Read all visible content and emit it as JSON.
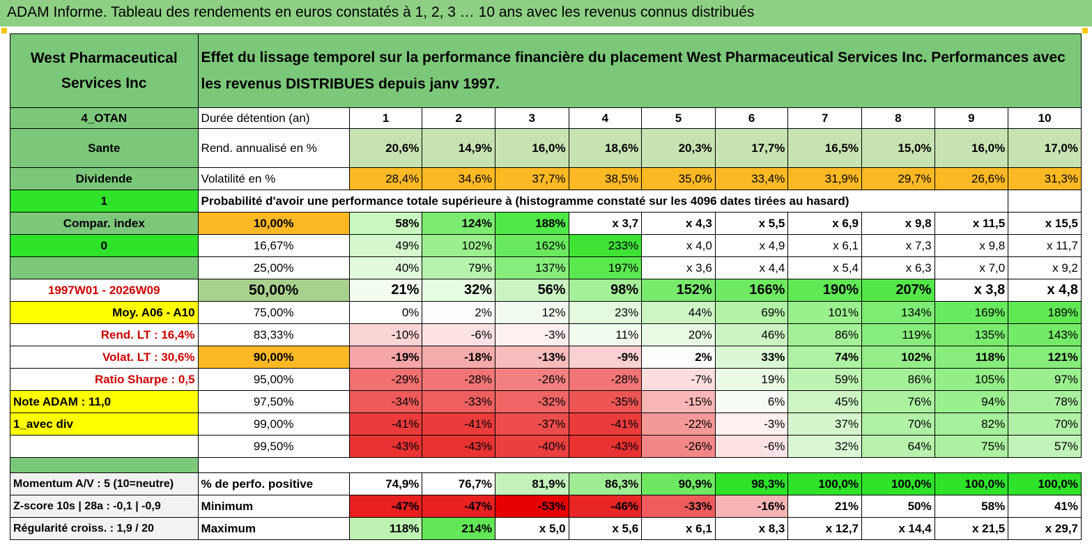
{
  "title": "ADAM Informe. Tableau des rendements en euros constatés à 1, 2, 3 … 10 ans avec les revenus connus distribués",
  "company": "West Pharmaceutical Services Inc",
  "description": "Effet du lissage temporel sur la performance financière du placement West Pharmaceutical Services Inc. Performances avec les revenus DISTRIBUES depuis janv 1997.",
  "histogram_caption": "Probabilité d'avoir une performance totale supérieure à (histogramme constaté sur les 4096 dates tirées au hasard)",
  "rows": [
    {
      "side": "4_OTAN",
      "label": "Durée détention (an)",
      "values": [
        "1",
        "2",
        "3",
        "4",
        "5",
        "6",
        "7",
        "8",
        "9",
        "10"
      ],
      "bold": true,
      "h": 30,
      "colors": [
        "#ffffff",
        "#ffffff",
        "#ffffff",
        "#ffffff",
        "#ffffff",
        "#ffffff",
        "#ffffff",
        "#ffffff",
        "#ffffff",
        "#ffffff"
      ],
      "align": "center"
    },
    {
      "side": "Sante",
      "label": "Rend. annualisé en %",
      "values": [
        "20,6%",
        "14,9%",
        "16,0%",
        "18,6%",
        "20,3%",
        "17,7%",
        "16,5%",
        "15,0%",
        "16,0%",
        "17,0%"
      ],
      "bold": true,
      "h": 56,
      "colors": [
        "#c7e3b2",
        "#c7e3b2",
        "#c7e3b2",
        "#c7e3b2",
        "#c7e3b2",
        "#c7e3b2",
        "#c7e3b2",
        "#c7e3b2",
        "#c7e3b2",
        "#c7e3b2"
      ]
    },
    {
      "side": "Dividende",
      "label": "Volatilité en %",
      "values": [
        "28,4%",
        "34,6%",
        "37,7%",
        "38,5%",
        "35,0%",
        "33,4%",
        "31,9%",
        "29,7%",
        "26,6%",
        "31,3%"
      ],
      "bold": false,
      "h": 32,
      "colors": [
        "#fdb924",
        "#fdb924",
        "#fdb924",
        "#fdb924",
        "#fdb924",
        "#fdb924",
        "#fdb924",
        "#fdb924",
        "#fdb924",
        "#fdb924"
      ]
    },
    {
      "side": "Compar. index",
      "label": "10,00%",
      "values": [
        "58%",
        "124%",
        "188%",
        "x 3,7",
        "x 4,3",
        "x 5,5",
        "x 6,9",
        "x 9,8",
        "x 11,5",
        "x 15,5"
      ],
      "bold": true,
      "h": 32,
      "colors": [
        "#c9f7c0",
        "#7cec70",
        "#4fe848",
        "#ffffff",
        "#ffffff",
        "#ffffff",
        "#ffffff",
        "#ffffff",
        "#ffffff",
        "#ffffff"
      ]
    },
    {
      "side": "0",
      "label": "16,67%",
      "values": [
        "49%",
        "102%",
        "162%",
        "233%",
        "x 4,0",
        "x 4,9",
        "x 6,1",
        "x 7,3",
        "x 9,8",
        "x 11,7"
      ],
      "bold": false,
      "h": 32,
      "colors": [
        "#d6f8cf",
        "#9bef8f",
        "#6ae95e",
        "#3ee336",
        "#ffffff",
        "#ffffff",
        "#ffffff",
        "#ffffff",
        "#ffffff",
        "#ffffff"
      ]
    },
    {
      "side": "",
      "label": "25,00%",
      "values": [
        "40%",
        "79%",
        "137%",
        "197%",
        "x 3,6",
        "x 4,4",
        "x 5,4",
        "x 6,3",
        "x 7,0",
        "x 9,2"
      ],
      "bold": false,
      "h": 32,
      "colors": [
        "#e1fadc",
        "#b7f3ad",
        "#86ec7b",
        "#5ae84f",
        "#ffffff",
        "#ffffff",
        "#ffffff",
        "#ffffff",
        "#ffffff",
        "#ffffff"
      ]
    },
    {
      "side": "1997W01 - 2026W09",
      "label": "50,00%",
      "values": [
        "21%",
        "32%",
        "56%",
        "98%",
        "152%",
        "166%",
        "190%",
        "207%",
        "x 3,8",
        "x 4,8"
      ],
      "bold": true,
      "h": 32,
      "colors": [
        "#f2fcef",
        "#e7fae2",
        "#cbf4c2",
        "#a4f098",
        "#78ea6c",
        "#6fea62",
        "#60e855",
        "#55e74a",
        "#ffffff",
        "#ffffff"
      ]
    },
    {
      "side": "Moy. A06 - A10",
      "label": "75,00%",
      "values": [
        "0%",
        "2%",
        "12%",
        "23%",
        "44%",
        "69%",
        "101%",
        "134%",
        "169%",
        "189%"
      ],
      "bold": false,
      "h": 32,
      "colors": [
        "#ffffff",
        "#fcfefb",
        "#f1fbed",
        "#e4f9de",
        "#cdf5c4",
        "#b4f2a8",
        "#9af08d",
        "#7fec73",
        "#6aea5e",
        "#60e854"
      ]
    },
    {
      "side": "Rend. LT :   16,4%",
      "label": "83,33%",
      "values": [
        "-10%",
        "-6%",
        "-3%",
        "11%",
        "20%",
        "46%",
        "86%",
        "119%",
        "135%",
        "143%"
      ],
      "bold": false,
      "h": 32,
      "colors": [
        "#fbd4d4",
        "#fce2e2",
        "#fdf0f0",
        "#f1fbee",
        "#e8fae3",
        "#ccf4c3",
        "#a4f098",
        "#86ec7b",
        "#7aeb6e",
        "#74eb68"
      ]
    },
    {
      "side": "Volat. LT :   30,6%",
      "label": "90,00%",
      "values": [
        "-19%",
        "-18%",
        "-13%",
        "-9%",
        "2%",
        "33%",
        "74%",
        "102%",
        "118%",
        "121%"
      ],
      "bold": true,
      "h": 32,
      "colors": [
        "#f6a6a6",
        "#f6abab",
        "#f8bcbc",
        "#fad0d0",
        "#fcfefb",
        "#dbf8d5",
        "#aef1a3",
        "#96ee8a",
        "#88ec7c",
        "#86ec7a"
      ]
    },
    {
      "side": "Ratio Sharpe :    0,5",
      "label": "95,00%",
      "values": [
        "-29%",
        "-28%",
        "-26%",
        "-28%",
        "-7%",
        "19%",
        "59%",
        "86%",
        "105%",
        "97%"
      ],
      "bold": false,
      "h": 32,
      "colors": [
        "#f17070",
        "#f27575",
        "#f38080",
        "#f27575",
        "#fcdede",
        "#e9fae5",
        "#bdf3b3",
        "#a4f098",
        "#93ee87",
        "#9bef8f"
      ]
    },
    {
      "side": "Note ADAM : 11,0",
      "label": "97,50%",
      "values": [
        "-34%",
        "-33%",
        "-32%",
        "-35%",
        "-15%",
        "6%",
        "45%",
        "76%",
        "94%",
        "78%"
      ],
      "bold": false,
      "h": 32,
      "colors": [
        "#ee5a5a",
        "#ee5f5f",
        "#ef6464",
        "#ed5555",
        "#f8b6b6",
        "#f7fdf5",
        "#ccf5c3",
        "#abf1a0",
        "#9aef8e",
        "#a9f09e"
      ]
    },
    {
      "side": "1_avec div",
      "label": "99,00%",
      "values": [
        "-41%",
        "-41%",
        "-37%",
        "-41%",
        "-22%",
        "-3%",
        "37%",
        "70%",
        "82%",
        "70%"
      ],
      "bold": false,
      "h": 32,
      "colors": [
        "#eb3b3b",
        "#eb3b3b",
        "#ec4c4c",
        "#eb3b3b",
        "#f49898",
        "#fdf0f0",
        "#d5f6cd",
        "#b1f1a6",
        "#a5f09a",
        "#b1f1a6"
      ]
    },
    {
      "side": "",
      "label": "99,50%",
      "values": [
        "-43%",
        "-43%",
        "-40%",
        "-43%",
        "-26%",
        "-6%",
        "32%",
        "64%",
        "75%",
        "57%"
      ],
      "bold": false,
      "h": 32,
      "colors": [
        "#ea3232",
        "#ea3232",
        "#eb3f3f",
        "#ea3232",
        "#f38787",
        "#fce2e2",
        "#dbf8d4",
        "#b8f2ad",
        "#acf0a1",
        "#c1f4b8"
      ]
    }
  ],
  "side_colors": [
    "#7cc87a",
    "#7cc87a",
    "#7cc87a",
    "#7cc87a",
    "#2ee32a",
    "#7cc87a",
    "#ffffff",
    "#ffff00",
    "#ffffff",
    "#ffffff",
    "#ffffff",
    "#ffff00",
    "#ffff00",
    "#ffffff"
  ],
  "label_colors": [
    "#ffffff",
    "#ffffff",
    "#ffffff",
    "#fdb924",
    "#ffffff",
    "#ffffff",
    "#a9d18e",
    "#ffffff",
    "#ffffff",
    "#fdb924",
    "#ffffff",
    "#ffffff",
    "#ffffff",
    "#ffffff"
  ],
  "filter_value": "1",
  "bottom": [
    {
      "side": "Momentum A/V : 5 (10=neutre)",
      "label": "% de perfo. positive",
      "values": [
        "74,9%",
        "76,7%",
        "81,9%",
        "86,3%",
        "90,9%",
        "98,3%",
        "100,0%",
        "100,0%",
        "100,0%",
        "100,0%"
      ],
      "colors": [
        "#ffffff",
        "#ffffff",
        "#c4f2ba",
        "#9fed93",
        "#6ee862",
        "#2ee32a",
        "#2ee32a",
        "#2ee32a",
        "#2ee32a",
        "#2ee32a"
      ]
    },
    {
      "side": "Z-score 10s | 28a : -0,1 | -0,9",
      "label": "Minimum",
      "values": [
        "-47%",
        "-47%",
        "-53%",
        "-46%",
        "-33%",
        "-16%",
        "21%",
        "50%",
        "58%",
        "41%"
      ],
      "colors": [
        "#e82020",
        "#e82020",
        "#e60000",
        "#e82626",
        "#f05c5c",
        "#f7b4b4",
        "#ffffff",
        "#ffffff",
        "#ffffff",
        "#ffffff"
      ]
    },
    {
      "side": "Régularité croiss. : 1,9 / 20",
      "label": "Maximum",
      "values": [
        "118%",
        "214%",
        "x 5,0",
        "x 5,6",
        "x 6,1",
        "x 8,3",
        "x 12,7",
        "x 14,4",
        "x 21,5",
        "x 29,7"
      ],
      "colors": [
        "#bdf2b3",
        "#63e657",
        "#ffffff",
        "#ffffff",
        "#ffffff",
        "#ffffff",
        "#ffffff",
        "#ffffff",
        "#ffffff",
        "#ffffff"
      ]
    }
  ]
}
